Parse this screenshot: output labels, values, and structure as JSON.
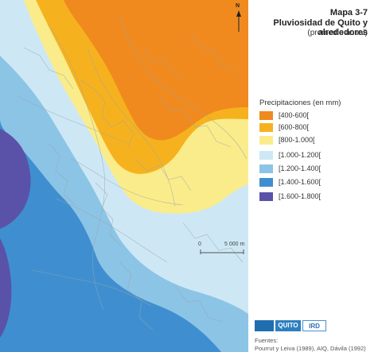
{
  "title": {
    "line1": "Mapa 3-7",
    "line2": "Pluviosidad de Quito y alrededores",
    "line3": "(promedio anual)"
  },
  "north": {
    "label": "N",
    "icon": "north-arrow-icon"
  },
  "legend": {
    "title": "Precipitaciones (en mm)",
    "items": [
      {
        "label": "[400-600[",
        "color": "#f08a1e"
      },
      {
        "label": "[600-800[",
        "color": "#f6b21e"
      },
      {
        "label": "[800-1.000[",
        "color": "#faec8a"
      },
      {
        "label": "[1.000-1.200[",
        "color": "#cde8f4"
      },
      {
        "label": "[1.200-1.400[",
        "color": "#8cc4e6"
      },
      {
        "label": "[1.400-1.600[",
        "color": "#3f8fd0"
      },
      {
        "label": "[1.600-1.800[",
        "color": "#5a52a8"
      }
    ]
  },
  "scale": {
    "start": "0",
    "end": "5 000 m"
  },
  "logos": {
    "quito": "QUITO",
    "ird": "IRD"
  },
  "sources": {
    "heading": "Fuentes:",
    "text": "Pourrut y Leiva (1989), AIQ, Dávila (1992)"
  }
}
